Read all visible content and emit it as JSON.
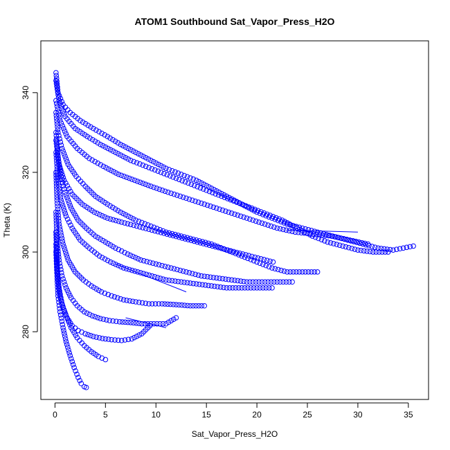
{
  "chart_data": {
    "type": "scatter",
    "title": "ATOM1 Southbound Sat_Vapor_Press_H2O",
    "xlabel": "Sat_Vapor_Press_H2O",
    "ylabel": "Theta (K)",
    "xlim": [
      -1.4,
      37.0
    ],
    "ylim": [
      263.0,
      353.0
    ],
    "x_ticks": [
      "0",
      "5",
      "10",
      "15",
      "20",
      "25",
      "30",
      "35"
    ],
    "y_ticks": [
      "280",
      "300",
      "320",
      "340"
    ],
    "x_tick_values": [
      0,
      5,
      10,
      15,
      20,
      25,
      30,
      35
    ],
    "y_tick_values": [
      280,
      300,
      320,
      340
    ],
    "marker": "open-circle",
    "color": "#0000ff",
    "grid": false,
    "legend": "none",
    "series": [
      {
        "x": [
          0.1,
          0.3,
          0.8,
          1.5,
          2.5,
          3.8,
          5.2,
          6.5,
          8.0,
          9.5,
          11.0,
          12.5,
          14.0,
          15.5,
          17.0,
          18.5,
          20.0,
          21.5,
          23.0,
          24.5,
          26.0,
          27.5,
          29.0,
          30.5,
          32.0,
          33.5,
          34.5,
          35.5
        ],
        "y": [
          345,
          340,
          337,
          335,
          333,
          331,
          329,
          327,
          325,
          323,
          321,
          319.5,
          318,
          316,
          314,
          312,
          310,
          308.5,
          307,
          306,
          305,
          304,
          303,
          302,
          301,
          300.5,
          301,
          301.5
        ]
      },
      {
        "x": [
          0.1,
          0.4,
          1.0,
          2.0,
          3.2,
          4.5,
          6.0,
          7.5,
          9.0,
          10.5,
          12.0,
          13.5,
          15.0,
          16.5,
          18.0,
          19.5,
          21.0,
          22.5,
          24.0,
          25.5,
          27.0,
          28.5,
          30.0,
          31.5,
          33.0
        ],
        "y": [
          343,
          338,
          334,
          331,
          329,
          327,
          325,
          323,
          321.5,
          320,
          318.5,
          317,
          315.5,
          314,
          312.5,
          311,
          309.5,
          308,
          306,
          304,
          302.5,
          301.5,
          300.5,
          300,
          300
        ]
      },
      {
        "x": [
          0.1,
          0.3,
          0.7,
          1.3,
          2.1,
          3.0,
          4.0,
          5.2,
          6.5,
          8.0,
          9.5,
          11.0,
          12.5,
          14.0,
          15.5,
          17.0,
          18.5,
          20.0,
          21.5,
          23.0,
          24.5,
          26.0
        ],
        "y": [
          335,
          330,
          326,
          322,
          319,
          316.5,
          314,
          312,
          310,
          308,
          306.5,
          305,
          304,
          303,
          302,
          300.5,
          299,
          297.5,
          296,
          295,
          295,
          295
        ]
      },
      {
        "x": [
          0.1,
          0.3,
          0.6,
          1.0,
          1.6,
          2.3,
          3.1,
          4.0,
          5.0,
          6.0,
          7.2,
          8.5,
          10.0,
          11.5,
          13.0,
          14.5,
          16.0,
          17.5,
          19.0,
          20.5,
          22.0,
          23.5
        ],
        "y": [
          330,
          324,
          319,
          315,
          311,
          308,
          306,
          304,
          302.5,
          301,
          299.5,
          298,
          297,
          296,
          295,
          294,
          293.5,
          293,
          292.5,
          292.5,
          292.5,
          292.5
        ]
      },
      {
        "x": [
          0.1,
          0.3,
          0.6,
          1.1,
          1.7,
          2.5,
          3.4,
          4.4,
          5.5,
          6.8,
          8.2,
          9.6,
          11.0,
          12.5,
          14.0,
          15.5,
          17.0,
          18.5,
          20.0,
          21.5
        ],
        "y": [
          325,
          318,
          313,
          309,
          306,
          303,
          301,
          299,
          297.5,
          296,
          295,
          294,
          293,
          292.5,
          292,
          291.5,
          291,
          291,
          291,
          291
        ]
      },
      {
        "x": [
          0.1,
          0.2,
          0.4,
          0.8,
          1.3,
          2.0,
          2.8,
          3.6,
          4.6,
          5.6,
          6.8,
          8.0,
          9.3,
          10.6,
          12.0,
          13.4,
          14.8
        ],
        "y": [
          320,
          313,
          307,
          302,
          298,
          295,
          293,
          291.5,
          290,
          289,
          288,
          287.5,
          287,
          287,
          286.8,
          286.5,
          286.5
        ]
      },
      {
        "x": [
          0.1,
          0.2,
          0.4,
          0.7,
          1.1,
          1.6,
          2.2,
          2.9,
          3.7,
          4.5,
          5.4,
          6.4,
          7.5,
          8.6,
          9.8,
          11.0,
          12.0
        ],
        "y": [
          310,
          303,
          298,
          294,
          291,
          288.5,
          286.5,
          285,
          284,
          283.3,
          282.8,
          282.5,
          282.3,
          282,
          282,
          282,
          283.5
        ]
      },
      {
        "x": [
          0.1,
          0.2,
          0.3,
          0.5,
          0.8,
          1.2,
          1.7,
          2.3,
          3.0,
          3.8,
          4.7,
          5.6,
          6.6,
          7.6,
          8.6,
          9.4
        ],
        "y": [
          305,
          298,
          293,
          289,
          286,
          283.5,
          281.5,
          280.3,
          279.5,
          278.8,
          278.3,
          278,
          277.8,
          278.2,
          279.5,
          281.5
        ]
      },
      {
        "x": [
          0.1,
          0.2,
          0.3,
          0.5,
          0.8,
          1.1,
          1.5,
          1.9,
          2.3,
          2.6,
          2.9,
          3.1
        ],
        "y": [
          300,
          294,
          289,
          285,
          281,
          277.5,
          274,
          271,
          268.5,
          267,
          266.2,
          266
        ]
      },
      {
        "x": [
          0.1,
          0.2,
          0.4,
          0.7,
          1.1,
          1.6,
          2.2,
          2.9,
          3.6,
          4.3,
          5.0
        ],
        "y": [
          302,
          296,
          291,
          287,
          284,
          281,
          278.5,
          276.5,
          275,
          273.8,
          273
        ]
      },
      {
        "x": [
          0.1,
          0.5,
          1.2,
          2.2,
          3.4,
          4.8,
          6.3,
          7.9,
          9.5,
          11.2,
          13.0,
          14.8,
          16.6,
          18.4,
          20.2,
          22.0,
          23.8,
          25.6,
          27.4,
          29.2,
          31.0
        ],
        "y": [
          338,
          333,
          329,
          326,
          323.5,
          321.5,
          319.5,
          318,
          316.5,
          315,
          313.5,
          312,
          310.5,
          309,
          307.5,
          306,
          305,
          304.5,
          304,
          303,
          302
        ]
      },
      {
        "x": [
          0.1,
          0.4,
          0.9,
          1.7,
          2.7,
          3.9,
          5.2,
          6.6,
          8.1,
          9.6,
          11.1,
          12.6,
          14.1,
          15.6,
          17.1,
          18.6,
          20.1,
          21.6
        ],
        "y": [
          328,
          322,
          318,
          314.5,
          312,
          310,
          308.5,
          307.5,
          306.5,
          305.5,
          304.5,
          303.5,
          302.5,
          301.5,
          300.5,
          299.5,
          298.5,
          297.5
        ]
      },
      {
        "x": [
          6.0,
          13.0
        ],
        "y": [
          297,
          290
        ],
        "line": true
      },
      {
        "x": [
          7.0,
          11.0
        ],
        "y": [
          283.5,
          281
        ],
        "line": true
      },
      {
        "x": [
          23.0,
          30.0
        ],
        "y": [
          305.5,
          305
        ],
        "line": true
      }
    ]
  }
}
